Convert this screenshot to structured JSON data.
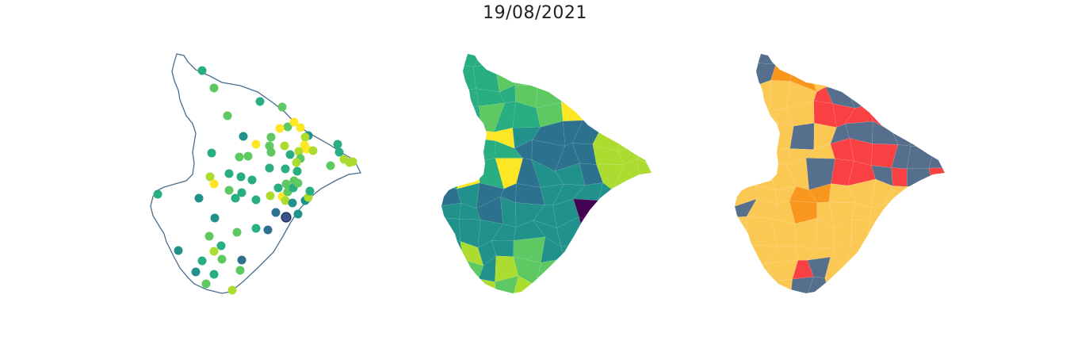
{
  "title": "19/08/2021",
  "palette": {
    "viridis": [
      "#3b528b",
      "#2c728e",
      "#21918c",
      "#28ae80",
      "#5ec962",
      "#addc30",
      "#fde725"
    ],
    "dark": "#440154",
    "outline": "#4a6c8c",
    "classes": [
      "#566f8c",
      "#fac853",
      "#f9961e",
      "#f94144"
    ]
  },
  "panels": [
    {
      "name": "points-map",
      "style": "outline with station points"
    },
    {
      "name": "choropleth-map",
      "style": "viridis choropleth"
    },
    {
      "name": "class-map",
      "style": "categorical choropleth"
    }
  ]
}
